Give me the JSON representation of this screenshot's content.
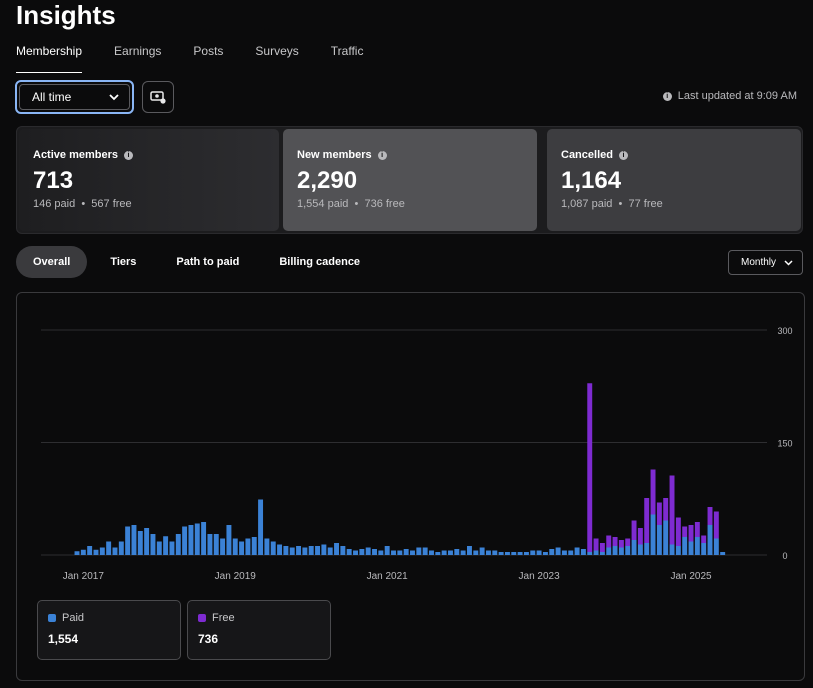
{
  "header": {
    "title": "Insights"
  },
  "tabs": [
    "Membership",
    "Earnings",
    "Posts",
    "Surveys",
    "Traffic"
  ],
  "filters": {
    "range": "All time",
    "last_updated": "Last updated at 9:09 AM"
  },
  "stats": [
    {
      "label": "Active members",
      "value": "713",
      "paid": "146 paid",
      "free": "567 free"
    },
    {
      "label": "New members",
      "value": "2,290",
      "paid": "1,554 paid",
      "free": "736 free"
    },
    {
      "label": "Cancelled",
      "value": "1,164",
      "paid": "1,087 paid",
      "free": "77 free"
    }
  ],
  "subtabs": [
    "Overall",
    "Tiers",
    "Path to paid",
    "Billing cadence"
  ],
  "period": "Monthly",
  "colors": {
    "paid": "#3b82d6",
    "free": "#7e2bd1",
    "grid": "#2e2e31"
  },
  "legend": [
    {
      "name": "Paid",
      "value": "1,554",
      "color": "#3b82d6"
    },
    {
      "name": "Free",
      "value": "736",
      "color": "#7e2bd1"
    }
  ],
  "chart_data": {
    "type": "bar",
    "stacked": true,
    "ylim": [
      0,
      300
    ],
    "y_ticks": [
      "300",
      "150",
      "0"
    ],
    "y_tick_values": [
      300,
      150,
      0
    ],
    "x_ticks": [
      {
        "label": "Jan 2017",
        "index": 1
      },
      {
        "label": "Jan 2019",
        "index": 25
      },
      {
        "label": "Jan 2021",
        "index": 49
      },
      {
        "label": "Jan 2023",
        "index": 73
      },
      {
        "label": "Jan 2025",
        "index": 97
      }
    ],
    "series": [
      {
        "name": "Paid",
        "values": [
          5,
          7,
          12,
          7,
          10,
          18,
          10,
          18,
          38,
          40,
          32,
          36,
          28,
          18,
          25,
          18,
          28,
          38,
          40,
          42,
          44,
          28,
          28,
          22,
          40,
          22,
          18,
          22,
          24,
          74,
          22,
          18,
          14,
          12,
          10,
          12,
          10,
          12,
          12,
          14,
          10,
          16,
          12,
          8,
          6,
          8,
          10,
          8,
          6,
          12,
          6,
          6,
          8,
          6,
          10,
          10,
          6,
          4,
          6,
          6,
          8,
          6,
          12,
          6,
          10,
          6,
          6,
          4,
          4,
          4,
          4,
          4,
          6,
          6,
          4,
          8,
          10,
          6,
          6,
          10,
          8,
          4,
          6,
          4,
          10,
          12,
          10,
          12,
          20,
          14,
          16,
          54,
          40,
          46,
          14,
          12,
          24,
          18,
          24,
          16,
          40,
          22,
          4,
          0
        ],
        "values_free": [
          0,
          0,
          0,
          0,
          0,
          0,
          0,
          0,
          0,
          0,
          0,
          0,
          0,
          0,
          0,
          0,
          0,
          0,
          0,
          0,
          0,
          0,
          0,
          0,
          0,
          0,
          0,
          0,
          0,
          0,
          0,
          0,
          0,
          0,
          0,
          0,
          0,
          0,
          0,
          0,
          0,
          0,
          0,
          0,
          0,
          0,
          0,
          0,
          0,
          0,
          0,
          0,
          0,
          0,
          0,
          0,
          0,
          0,
          0,
          0,
          0,
          0,
          0,
          0,
          0,
          0,
          0,
          0,
          0,
          0,
          0,
          0,
          0,
          0,
          0,
          0,
          0,
          0,
          0,
          0,
          0,
          225,
          16,
          12,
          16,
          12,
          10,
          10,
          26,
          22,
          60,
          60,
          30,
          30,
          92,
          38,
          14,
          22,
          20,
          10,
          24,
          36,
          0,
          0
        ]
      },
      {
        "name": "Free"
      }
    ]
  }
}
